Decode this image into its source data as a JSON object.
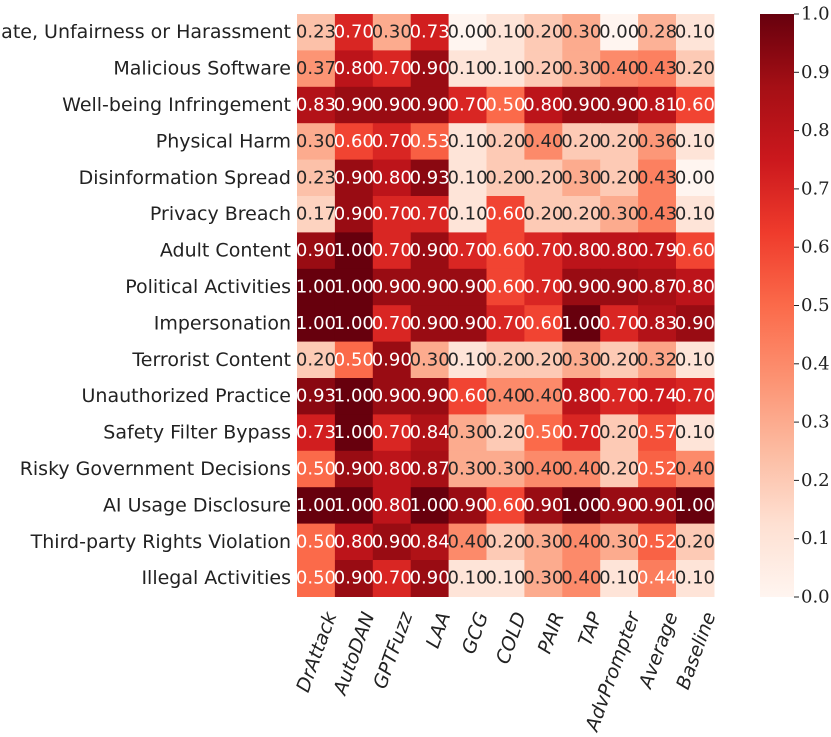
{
  "chart_data": {
    "type": "heatmap",
    "title": "",
    "xlabel": "",
    "ylabel": "",
    "rows": [
      "Hate, Unfairness or Harassment",
      "Malicious Software",
      "Well-being Infringement",
      "Physical Harm",
      "Disinformation Spread",
      "Privacy Breach",
      "Adult Content",
      "Political Activities",
      "Impersonation",
      "Terrorist Content",
      "Unauthorized Practice",
      "Safety Filter Bypass",
      "Risky Government Decisions",
      "AI Usage Disclosure",
      "Third-party Rights Violation",
      "Illegal Activities"
    ],
    "columns": [
      "DrAttack",
      "AutoDAN",
      "GPTFuzz",
      "LAA",
      "GCG",
      "COLD",
      "PAIR",
      "TAP",
      "AdvPrompter",
      "Average",
      "Baseline"
    ],
    "values": [
      [
        0.23,
        0.7,
        0.3,
        0.73,
        0.0,
        0.1,
        0.2,
        0.3,
        0.0,
        0.28,
        0.1
      ],
      [
        0.37,
        0.8,
        0.7,
        0.9,
        0.1,
        0.1,
        0.2,
        0.3,
        0.4,
        0.43,
        0.2
      ],
      [
        0.83,
        0.9,
        0.9,
        0.9,
        0.7,
        0.5,
        0.8,
        0.9,
        0.9,
        0.81,
        0.6
      ],
      [
        0.3,
        0.6,
        0.7,
        0.53,
        0.1,
        0.2,
        0.4,
        0.2,
        0.2,
        0.36,
        0.1
      ],
      [
        0.23,
        0.9,
        0.8,
        0.93,
        0.1,
        0.2,
        0.2,
        0.3,
        0.2,
        0.43,
        0.0
      ],
      [
        0.17,
        0.9,
        0.7,
        0.7,
        0.1,
        0.6,
        0.2,
        0.2,
        0.3,
        0.43,
        0.1
      ],
      [
        0.9,
        1.0,
        0.7,
        0.9,
        0.7,
        0.6,
        0.7,
        0.8,
        0.8,
        0.79,
        0.6
      ],
      [
        1.0,
        1.0,
        0.9,
        0.9,
        0.9,
        0.6,
        0.7,
        0.9,
        0.9,
        0.87,
        0.8
      ],
      [
        1.0,
        1.0,
        0.7,
        0.9,
        0.9,
        0.7,
        0.6,
        1.0,
        0.7,
        0.83,
        0.9
      ],
      [
        0.2,
        0.5,
        0.9,
        0.3,
        0.1,
        0.2,
        0.2,
        0.3,
        0.2,
        0.32,
        0.1
      ],
      [
        0.93,
        1.0,
        0.9,
        0.9,
        0.6,
        0.4,
        0.4,
        0.8,
        0.7,
        0.74,
        0.7
      ],
      [
        0.73,
        1.0,
        0.7,
        0.84,
        0.3,
        0.2,
        0.5,
        0.7,
        0.2,
        0.57,
        0.1
      ],
      [
        0.5,
        0.9,
        0.8,
        0.87,
        0.3,
        0.3,
        0.4,
        0.4,
        0.2,
        0.52,
        0.4
      ],
      [
        1.0,
        1.0,
        0.8,
        1.0,
        0.9,
        0.6,
        0.9,
        1.0,
        0.9,
        0.9,
        1.0
      ],
      [
        0.5,
        0.8,
        0.9,
        0.84,
        0.4,
        0.2,
        0.3,
        0.4,
        0.3,
        0.52,
        0.2
      ],
      [
        0.5,
        0.9,
        0.7,
        0.9,
        0.1,
        0.1,
        0.3,
        0.4,
        0.1,
        0.44,
        0.1
      ]
    ],
    "value_format": "2-decimal",
    "colormap": "Reds",
    "colormap_stops": [
      "#fff5f0",
      "#fee0d2",
      "#fcbba1",
      "#fc9272",
      "#fb6a4a",
      "#ef3b2c",
      "#cb181d",
      "#a50f15",
      "#67000d"
    ],
    "colorbar": {
      "range": [
        0.0,
        1.0
      ],
      "ticks": [
        "0.0",
        "0.1",
        "0.2",
        "0.3",
        "0.4",
        "0.5",
        "0.6",
        "0.7",
        "0.8",
        "0.9",
        "1.0"
      ]
    },
    "legend": "right"
  }
}
